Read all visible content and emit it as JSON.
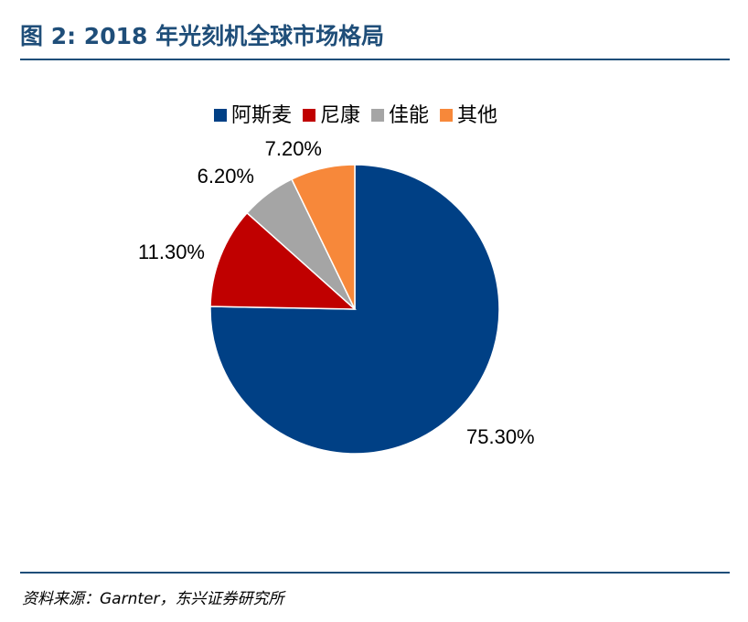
{
  "figure": {
    "title": "图 2: 2018 年光刻机全球市场格局",
    "source": "资料来源：Garnter，东兴证券研究所"
  },
  "colors": {
    "title": "#1f4e79",
    "rule": "#1f4e79"
  },
  "chart_data": {
    "type": "pie",
    "title": "",
    "legend_position": "top",
    "slices": [
      {
        "name": "阿斯麦",
        "value": 75.3,
        "label": "75.30%",
        "color": "#004085"
      },
      {
        "name": "尼康",
        "value": 11.3,
        "label": "11.30%",
        "color": "#c00000"
      },
      {
        "name": "佳能",
        "value": 6.2,
        "label": "6.20%",
        "color": "#a5a5a5"
      },
      {
        "name": "其他",
        "value": 7.2,
        "label": "7.20%",
        "color": "#f7883a"
      }
    ]
  }
}
